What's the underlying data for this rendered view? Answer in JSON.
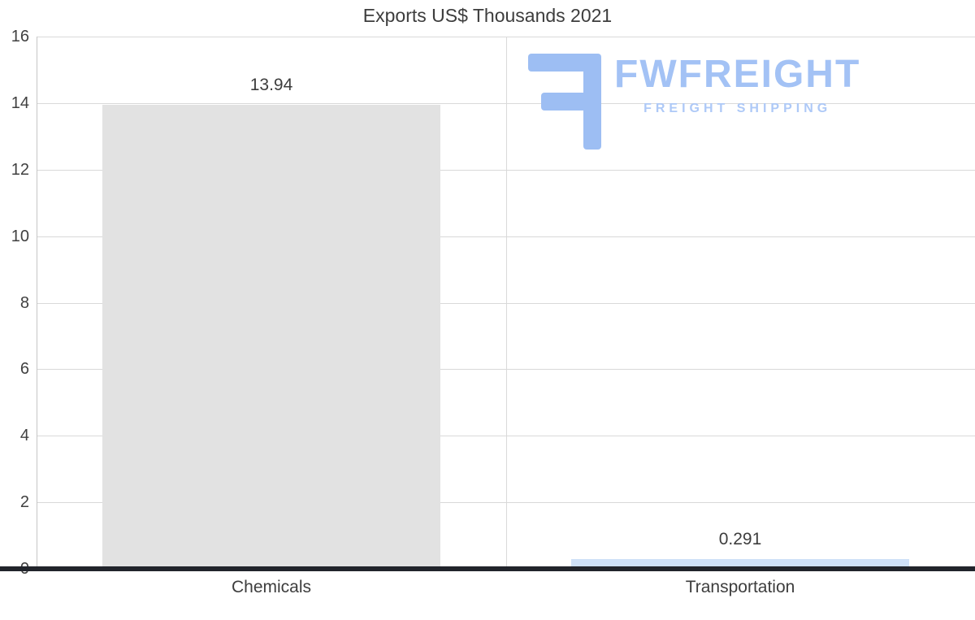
{
  "logo": {
    "wordmark": "FWFREIGHT",
    "tagline": "FREIGHT SHIPPING",
    "color": "#a3c2f5"
  },
  "chart_data": {
    "type": "bar",
    "title": "Exports US$ Thousands 2021",
    "categories": [
      "Chemicals",
      "Transportation"
    ],
    "values": [
      13.94,
      0.291
    ],
    "value_labels": [
      "13.94",
      "0.291"
    ],
    "bar_colors": [
      "#e2e2e2",
      "#cfe1f8"
    ],
    "ylim": [
      0,
      16
    ],
    "yticks": [
      0,
      2,
      4,
      6,
      8,
      10,
      12,
      14,
      16
    ],
    "grid": true,
    "legend": false,
    "xlabel": "",
    "ylabel": ""
  },
  "colors": {
    "text": "#3d3d3d",
    "gridline": "#d9d9d9",
    "axis_line": "#c6c6c6",
    "baseline": "#21242b",
    "background": "#ffffff"
  }
}
